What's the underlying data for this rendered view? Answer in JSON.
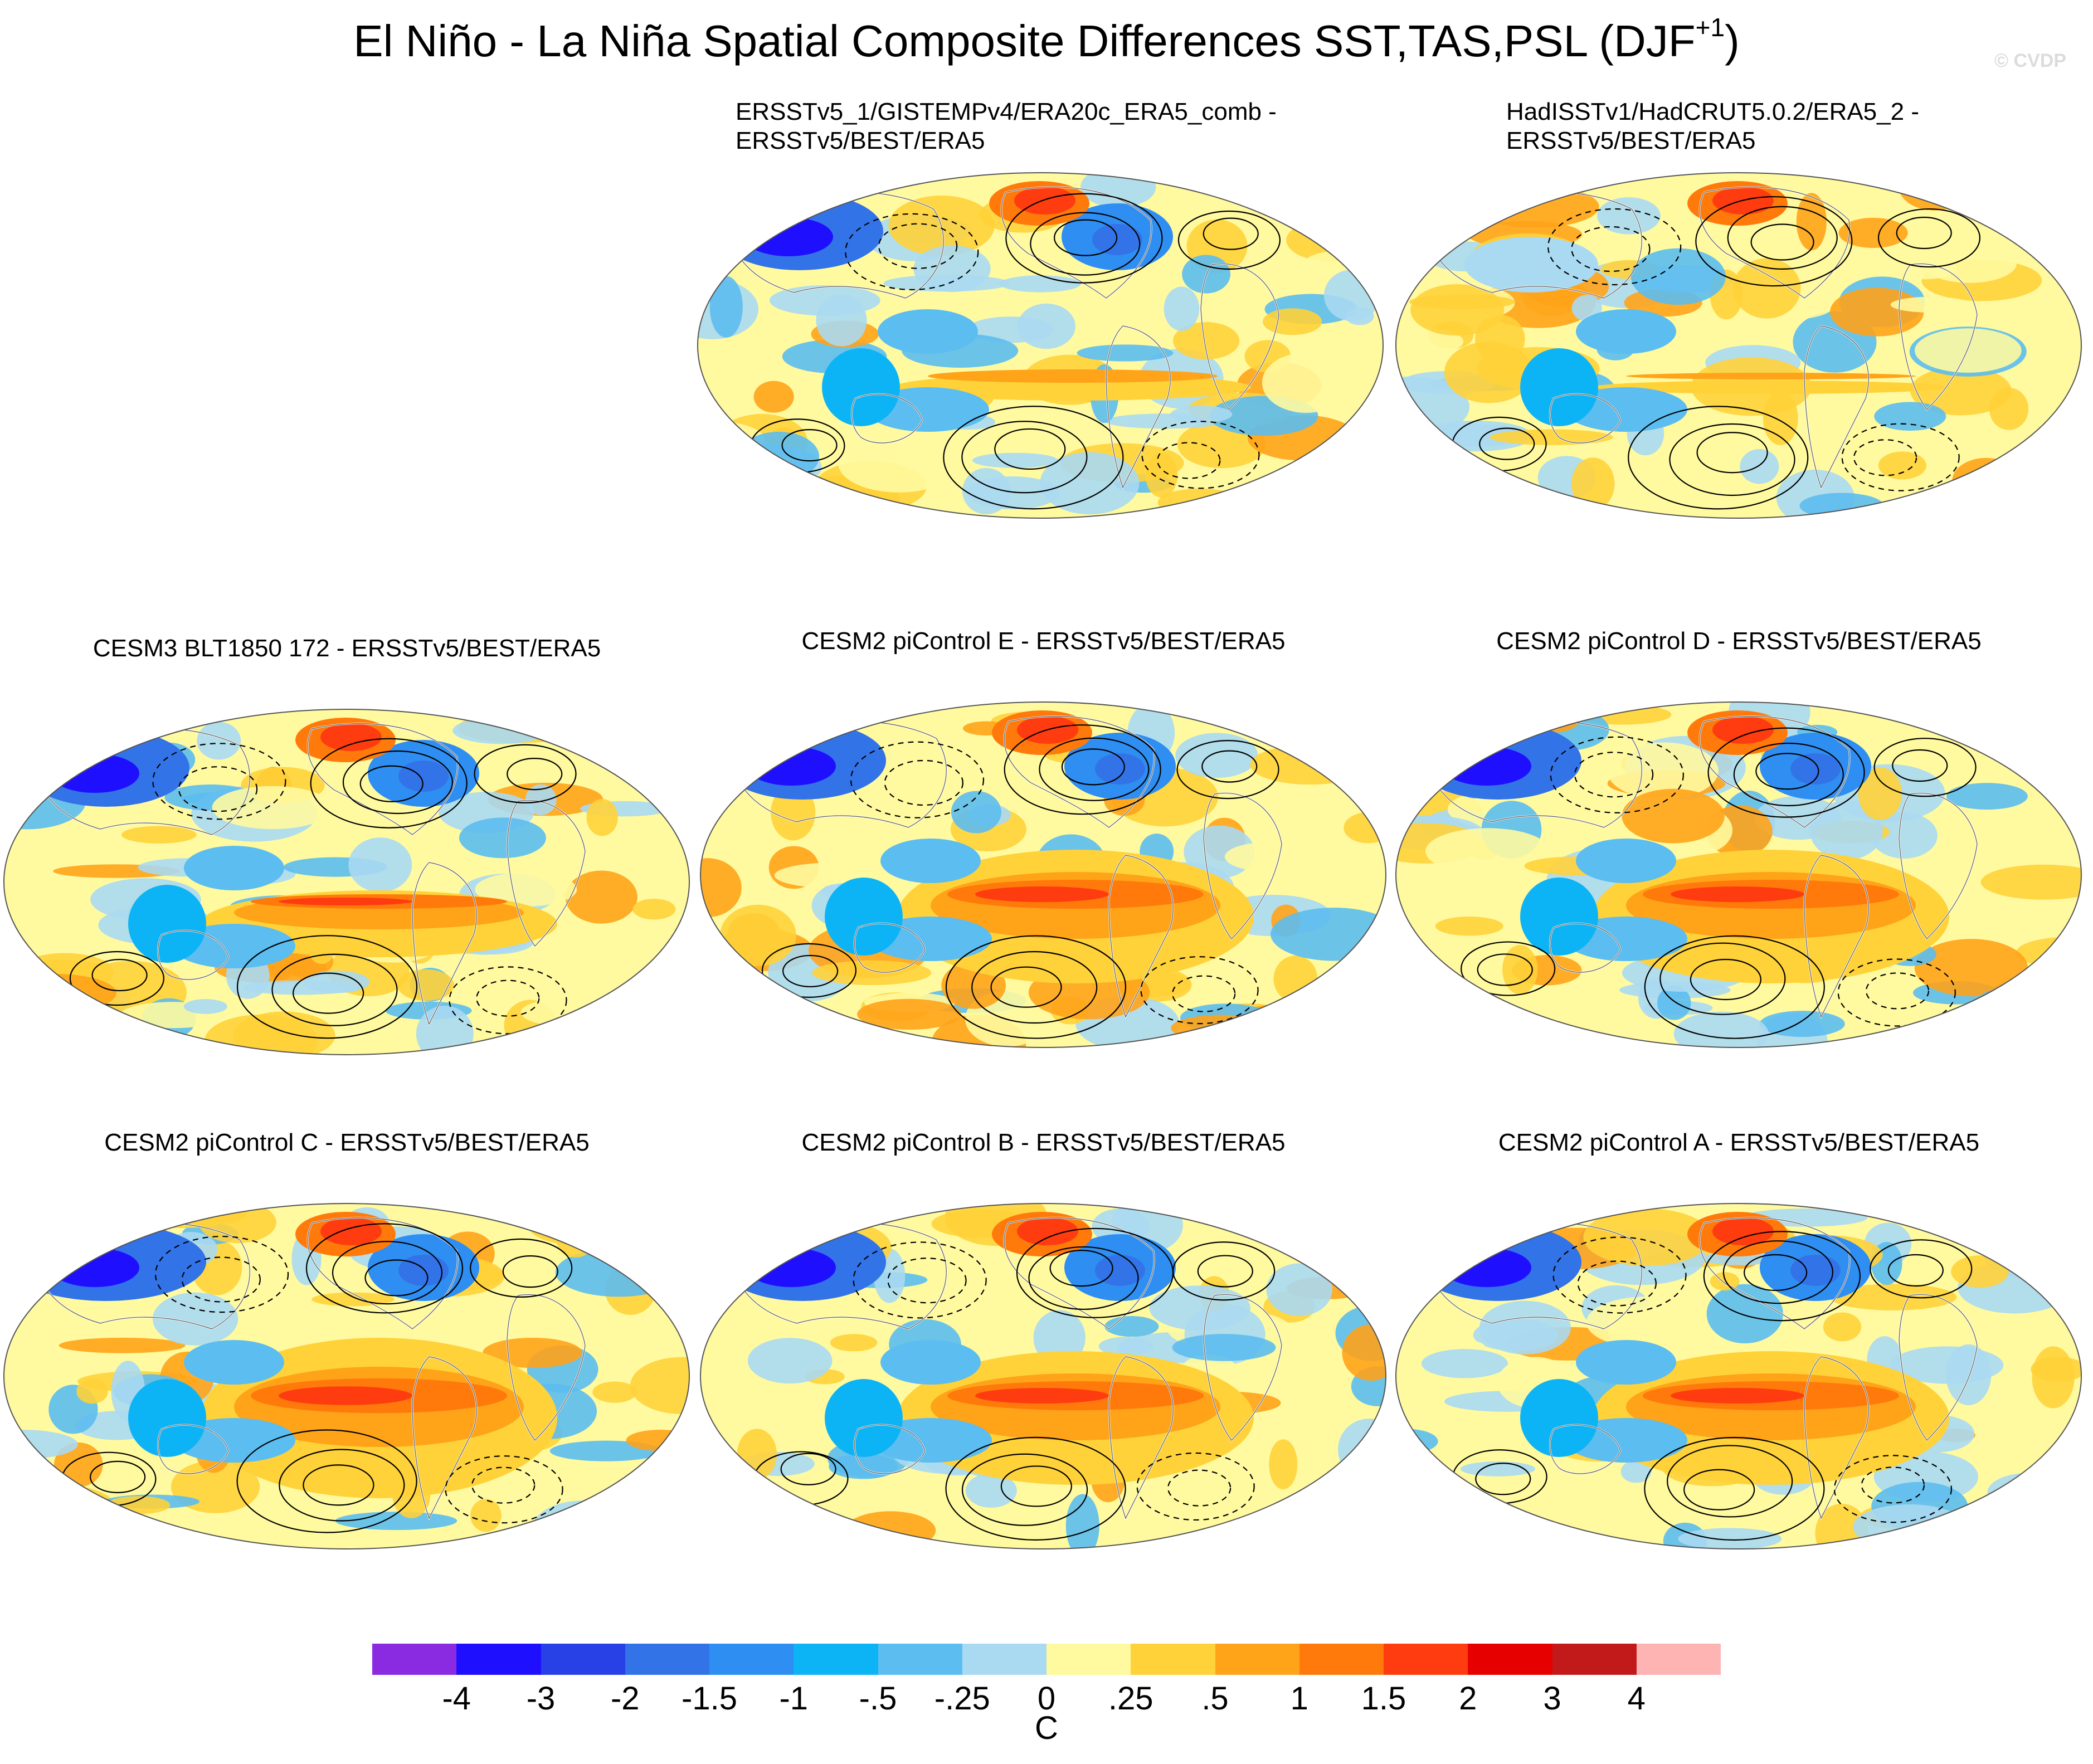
{
  "title": {
    "main": "El Niño - La Niña Spatial Composite Differences SST,TAS,PSL (DJF",
    "superscript": "+1",
    "close": ")"
  },
  "watermark": "© CVDP",
  "panels": [
    {
      "id": "p-obs1",
      "lines": [
        "ERSSTv5_1/GISTEMPv4/ERA20c_ERA5_comb -",
        "ERSSTv5/BEST/ERA5"
      ]
    },
    {
      "id": "p-obs2",
      "lines": [
        "HadISSTv1/HadCRUT5.0.2/ERA5_2 -",
        "ERSSTv5/BEST/ERA5"
      ]
    },
    {
      "id": "p-cesm3",
      "lines": [
        "CESM3 BLT1850 172 - ERSSTv5/BEST/ERA5"
      ]
    },
    {
      "id": "p-e",
      "lines": [
        "CESM2 piControl E - ERSSTv5/BEST/ERA5"
      ]
    },
    {
      "id": "p-d",
      "lines": [
        "CESM2 piControl D - ERSSTv5/BEST/ERA5"
      ]
    },
    {
      "id": "p-c",
      "lines": [
        "CESM2 piControl C - ERSSTv5/BEST/ERA5"
      ]
    },
    {
      "id": "p-b",
      "lines": [
        "CESM2 piControl B - ERSSTv5/BEST/ERA5"
      ]
    },
    {
      "id": "p-a",
      "lines": [
        "CESM2 piControl A - ERSSTv5/BEST/ERA5"
      ]
    }
  ],
  "colorbar": {
    "colors": [
      "#8a2be2",
      "#1e10ff",
      "#2841e6",
      "#3373e8",
      "#2f8ef2",
      "#0db4f5",
      "#5cbdf0",
      "#aad9f2",
      "#fffaa0",
      "#ffd23a",
      "#ffa319",
      "#ff7a0a",
      "#ff3c10",
      "#e60000",
      "#c21a1a",
      "#ffb4b4"
    ],
    "labels": [
      "-4",
      "-3",
      "-2",
      "-1.5",
      "-1",
      "-.5",
      "-.25",
      "0",
      ".25",
      ".5",
      "1",
      "1.5",
      "2",
      "3",
      "4"
    ],
    "units": "C"
  }
}
